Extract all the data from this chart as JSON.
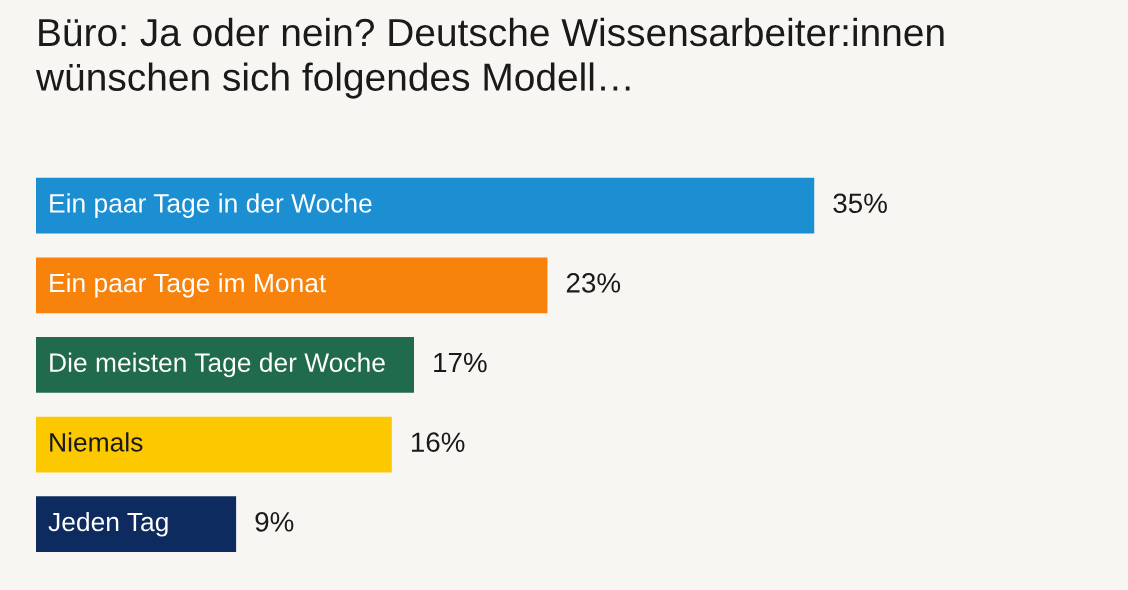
{
  "chart_data": {
    "type": "bar",
    "orientation": "horizontal",
    "title": "Büro: Ja oder nein? Deutsche Wissensarbeiter:innen wünschen sich folgendes Modell…",
    "categories": [
      "Ein paar Tage in der Woche",
      "Ein paar Tage im Monat",
      "Die meisten Tage der Woche",
      "Niemals",
      "Jeden Tag"
    ],
    "values": [
      35,
      23,
      17,
      16,
      9
    ],
    "value_labels": [
      "35%",
      "23%",
      "17%",
      "16%",
      "9%"
    ],
    "colors": [
      "#1b8fd2",
      "#f7820c",
      "#1f6b4c",
      "#fcc800",
      "#0d2b5e"
    ],
    "tick_labels": false,
    "grid": false
  }
}
